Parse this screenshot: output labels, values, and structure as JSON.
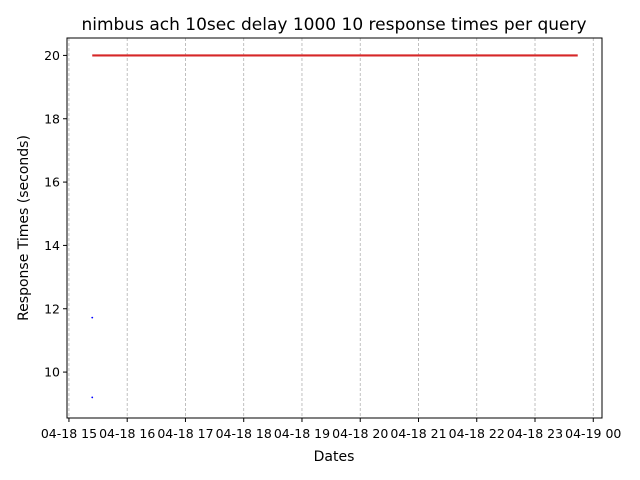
{
  "chart_data": {
    "type": "line",
    "title": "nimbus ach 10sec delay 1000 10 response times per query",
    "xlabel": "Dates",
    "ylabel": "Response Times (seconds)",
    "x_tick_labels": [
      "04-18 15",
      "04-18 16",
      "04-18 17",
      "04-18 18",
      "04-18 19",
      "04-18 20",
      "04-18 21",
      "04-18 22",
      "04-18 23",
      "04-19 00"
    ],
    "x_ticks": [
      "04-18 15:00",
      "04-18 16:00",
      "04-18 17:00",
      "04-18 18:00",
      "04-18 19:00",
      "04-18 20:00",
      "04-18 21:00",
      "04-18 22:00",
      "04-18 23:00",
      "04-19 00:00"
    ],
    "xlim": [
      "04-18 14:58",
      "04-19 00:09"
    ],
    "y_ticks": [
      10,
      12,
      14,
      16,
      18,
      20
    ],
    "ylim": [
      8.55,
      20.55
    ],
    "grid": {
      "x": true,
      "y": false
    },
    "colors": {
      "series_line": "#d62728",
      "points": "#0000ff",
      "grid": "#b0b0b0"
    },
    "series": [
      {
        "type": "line",
        "x": [
          "04-18 15:24",
          "04-18 23:44"
        ],
        "values": [
          20,
          20
        ]
      },
      {
        "type": "scatter",
        "x": [
          "04-18 15:24",
          "04-18 15:24"
        ],
        "values": [
          11.72,
          9.2
        ]
      }
    ]
  }
}
